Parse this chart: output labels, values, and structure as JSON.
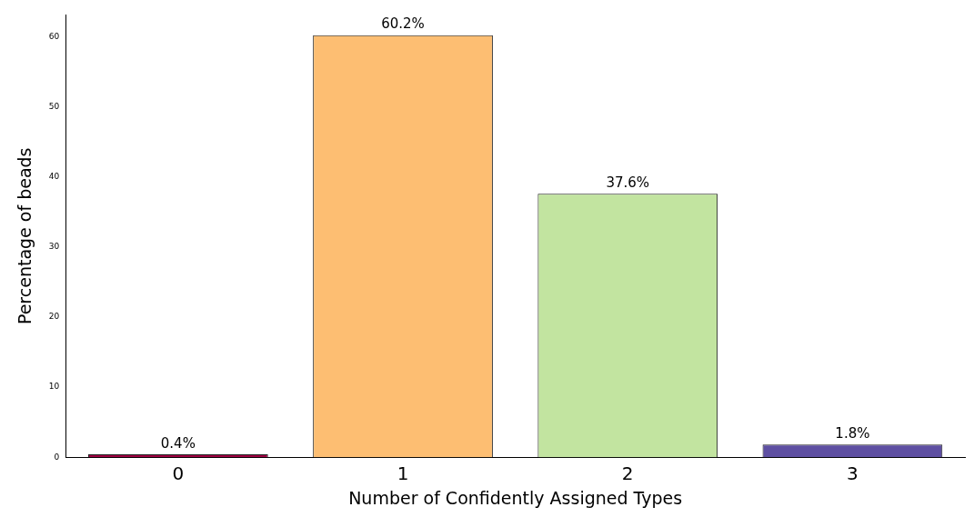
{
  "chart_data": {
    "type": "bar",
    "xlabel": "Number of Confidently Assigned Types",
    "ylabel": "Percentage of beads",
    "categories": [
      "0",
      "1",
      "2",
      "3"
    ],
    "values": [
      0.4,
      60.2,
      37.6,
      1.8
    ],
    "colors": [
      "#9e0142",
      "#fdbe72",
      "#c2e4a0",
      "#5e4fa2"
    ],
    "value_labels": [
      "0.4%",
      "60.2%",
      "37.6%",
      "1.8%"
    ],
    "ylim": [
      0,
      63.1
    ],
    "yticks": [
      0,
      10,
      20,
      30,
      40,
      50,
      60
    ],
    "grid": false,
    "legend": false
  }
}
